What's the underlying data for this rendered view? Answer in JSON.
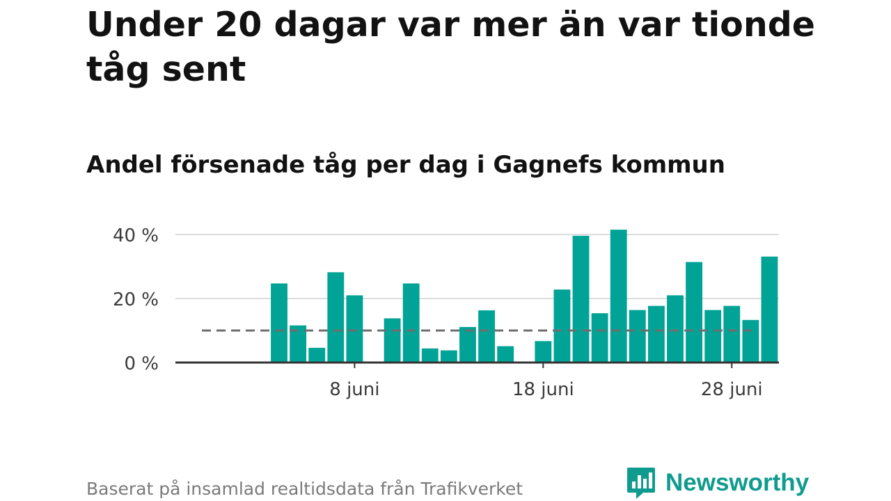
{
  "header": {
    "title": "Under 20 dagar var mer än var tionde tåg sent",
    "subtitle": "Andel försenade tåg per dag i Gagnefs kommun"
  },
  "footer": {
    "source": "Baserat på insamlad realtidsdata från Trafikverket",
    "brand": "Newsworthy"
  },
  "colors": {
    "bar": "#00a396",
    "reference_line": "#6e6e6e",
    "grid": "#dddddd",
    "axis": "#333333",
    "brand": "#0f9b8e"
  },
  "icons": {
    "brand_logo": "bar-chart-speech-bubble-icon"
  },
  "chart_data": {
    "type": "bar",
    "x_unit": "day of June",
    "x": [
      1,
      2,
      3,
      4,
      5,
      6,
      7,
      8,
      9,
      10,
      11,
      12,
      13,
      14,
      15,
      16,
      17,
      18,
      19,
      20,
      21,
      22,
      23,
      24,
      25,
      26,
      27,
      28,
      29,
      30
    ],
    "values": [
      null,
      null,
      null,
      24.7,
      11.6,
      4.6,
      28.2,
      21.0,
      null,
      13.8,
      24.7,
      4.4,
      3.8,
      11.1,
      16.3,
      5.1,
      null,
      6.7,
      22.8,
      39.6,
      15.4,
      41.5,
      16.4,
      17.7,
      21.0,
      31.4,
      16.4,
      17.7,
      13.3,
      33.1
    ],
    "reference_line": 10,
    "y_ticks": [
      {
        "value": 0,
        "label": "0 %"
      },
      {
        "value": 20,
        "label": "20 %"
      },
      {
        "value": 40,
        "label": "40 %"
      }
    ],
    "x_ticks": [
      {
        "value": 8,
        "label": "8 juni"
      },
      {
        "value": 18,
        "label": "18 juni"
      },
      {
        "value": 28,
        "label": "28 juni"
      }
    ],
    "ylim": [
      0,
      42
    ],
    "xlim": [
      -1.5,
      30.5
    ],
    "grid": true
  }
}
